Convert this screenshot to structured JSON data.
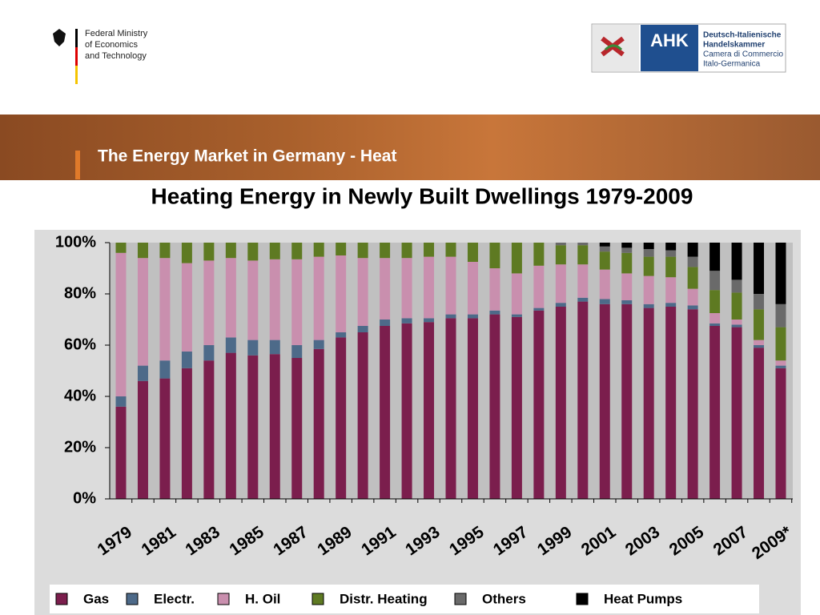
{
  "header": {
    "ministry": [
      "Federal Ministry",
      "of Economics",
      "and Technology"
    ],
    "ahk": "AHK",
    "ahk_text": [
      "Deutsch-Italienische",
      "Handelskammer",
      "Camera di Commercio",
      "Italo-Germanica"
    ],
    "banner": "The Energy Market in Germany - Heat"
  },
  "chart_data": {
    "type": "stacked_bar",
    "title": "Heating Energy in Newly Built Dwellings 1979-2009",
    "categories": [
      "1979",
      null,
      "1981",
      null,
      "1983",
      null,
      "1985",
      null,
      "1987",
      null,
      "1989",
      null,
      "1991",
      null,
      "1993",
      null,
      "1995",
      null,
      "1997",
      null,
      "1999",
      null,
      "2001",
      null,
      "2003",
      null,
      "2005",
      null,
      "2007",
      null,
      "2009*"
    ],
    "series": [
      {
        "name": "Gas",
        "color": "#7b1e4d",
        "values": [
          36,
          46,
          47,
          51,
          54,
          57,
          56,
          56.5,
          55,
          58.5,
          63,
          65,
          67.5,
          68.5,
          69,
          70.5,
          70.5,
          72,
          71,
          73.5,
          75,
          77,
          76,
          76,
          74.5,
          75,
          74,
          67.5,
          67,
          59,
          51
        ]
      },
      {
        "name": "Electr.",
        "color": "#4d6a89",
        "values": [
          4,
          6,
          7,
          6.5,
          6,
          6,
          6,
          5.5,
          5,
          3.5,
          2,
          2.5,
          2.5,
          2,
          1.5,
          1.5,
          1.5,
          1.5,
          1,
          1,
          1.5,
          1.5,
          2,
          1.5,
          1.5,
          1.5,
          1.5,
          1,
          1,
          1,
          1
        ]
      },
      {
        "name": "H. Oil",
        "color": "#c98fae",
        "values": [
          56,
          42,
          40,
          34.5,
          33,
          31,
          31,
          31.5,
          33.5,
          32.5,
          30,
          26.5,
          24,
          23.5,
          24,
          22.5,
          20.5,
          16.5,
          16,
          16.5,
          15,
          13,
          11.5,
          10.5,
          11,
          10,
          6.5,
          4,
          2,
          2,
          2
        ]
      },
      {
        "name": "Distr. Heating",
        "color": "#5e7a22",
        "values": [
          4,
          6,
          6,
          8,
          7,
          6,
          7,
          6.5,
          6.5,
          5.5,
          5,
          6,
          6,
          6,
          5.5,
          5.5,
          7.5,
          10,
          12,
          9,
          7.5,
          7.5,
          7,
          8,
          7.5,
          8,
          8.5,
          9,
          10.5,
          12,
          13
        ]
      },
      {
        "name": "Others",
        "color": "#6a6a6a",
        "values": [
          0,
          0,
          0,
          0,
          0,
          0,
          0,
          0,
          0,
          0,
          0,
          0,
          0,
          0,
          0,
          0,
          0,
          0,
          0,
          0,
          1,
          1,
          2,
          2,
          3,
          2.5,
          4,
          7.5,
          5,
          6,
          9
        ]
      },
      {
        "name": "Heat Pumps",
        "color": "#000000",
        "values": [
          0,
          0,
          0,
          0,
          0,
          0,
          0,
          0,
          0,
          0,
          0,
          0,
          0,
          0,
          0,
          0,
          0,
          0,
          0,
          0,
          0,
          0,
          1.5,
          2,
          2.5,
          3,
          5.5,
          11,
          14.5,
          20,
          24
        ]
      }
    ],
    "ylim": [
      0,
      100
    ],
    "yticks": [
      {
        "value": 0,
        "label": "0%"
      },
      {
        "value": 20,
        "label": "20%"
      },
      {
        "value": 40,
        "label": "40%"
      },
      {
        "value": 60,
        "label": "60%"
      },
      {
        "value": 80,
        "label": "80%"
      },
      {
        "value": 100,
        "label": "100%"
      }
    ]
  }
}
